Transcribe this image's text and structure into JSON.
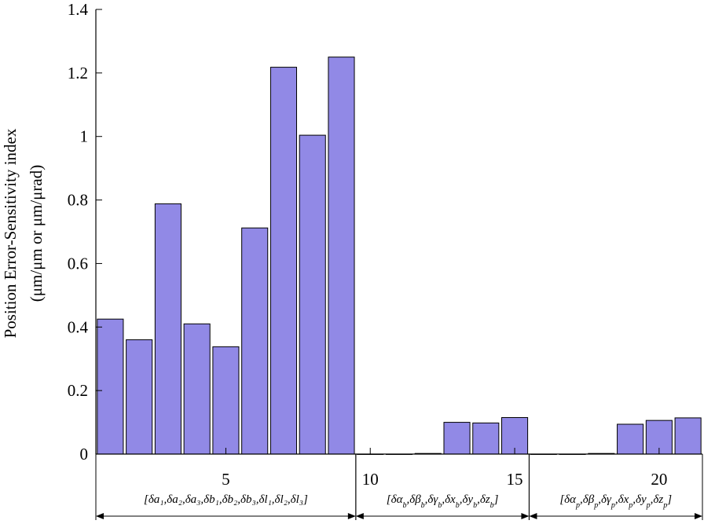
{
  "chart_data": {
    "type": "bar",
    "x": [
      1,
      2,
      3,
      4,
      5,
      6,
      7,
      8,
      9,
      10,
      11,
      12,
      13,
      14,
      15,
      16,
      17,
      18,
      19,
      20,
      21
    ],
    "values": [
      0.425,
      0.36,
      0.788,
      0.41,
      0.338,
      0.712,
      1.218,
      1.004,
      1.25,
      0.0,
      0.0,
      0.002,
      0.1,
      0.098,
      0.115,
      0.0,
      0.0,
      0.002,
      0.094,
      0.106,
      0.114
    ],
    "xlim": [
      0.5,
      21.5
    ],
    "ylim": [
      0,
      1.4
    ],
    "xticks": [
      5,
      10,
      15,
      20
    ],
    "yticks": [
      0,
      0.2,
      0.4,
      0.6,
      0.8,
      1,
      1.2,
      1.4
    ],
    "ytick_labels": [
      "0",
      "0.2",
      "0.4",
      "0.6",
      "0.8",
      "1",
      "1.2",
      "1.4"
    ],
    "xtick_labels": [
      "5",
      "10",
      "15",
      "20"
    ],
    "ylabel_line1": "Position Error-Sensitivity index",
    "ylabel_line2": "(μm/μm or μm/μrad)",
    "bar_color": "#9189e6",
    "bar_edge": "#000000",
    "grid": false,
    "groups": [
      {
        "start": 0.5,
        "end": 9.5,
        "label": "[δa₁,δa₂,δa₃,δb₁,δb₂,δb₃,δl₁,δl₂,δl₃]"
      },
      {
        "start": 9.5,
        "end": 15.5,
        "label": "[δα_b,δβ_b,δγ_b,δx_b,δy_b,δz_b]"
      },
      {
        "start": 15.5,
        "end": 21.5,
        "label": "[δα_p,δβ_p,δγ_p,δx_p,δy_p,δz_p]"
      }
    ]
  }
}
